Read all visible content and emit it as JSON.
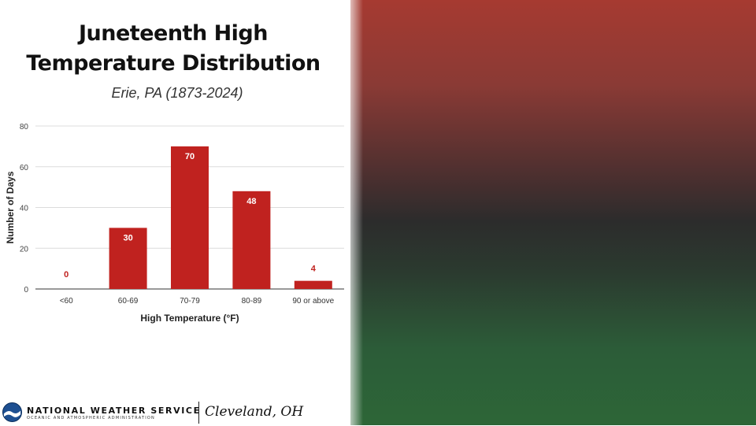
{
  "chart_data": {
    "type": "bar",
    "title_line1": "Juneteenth High",
    "title_line2": "Temperature Distribution",
    "subtitle": "Erie, PA (1873-2024)",
    "xlabel": "High Temperature (°F)",
    "ylabel": "Number of Days",
    "categories": [
      "<60",
      "60-69",
      "70-79",
      "80-89",
      "90 or above"
    ],
    "values": [
      0,
      30,
      70,
      48,
      4
    ],
    "ylim": [
      0,
      80
    ],
    "yticks": [
      0,
      20,
      40,
      60,
      80
    ],
    "grid": true,
    "bar_color": "#c0221f",
    "label_inside_color": "#ffffff",
    "label_outside_color": "#c0221f"
  },
  "footer": {
    "agency": "NATIONAL WEATHER SERVICE",
    "agency_sub": "OCEANIC AND ATMOSPHERIC ADMINISTRATION",
    "office": "Cleveland, OH",
    "logo_icon": "noaa-logo-icon"
  },
  "colors": {
    "panel_top": "#a63a31",
    "panel_middle": "#2c2c2c",
    "panel_bottom": "#2d6637"
  }
}
